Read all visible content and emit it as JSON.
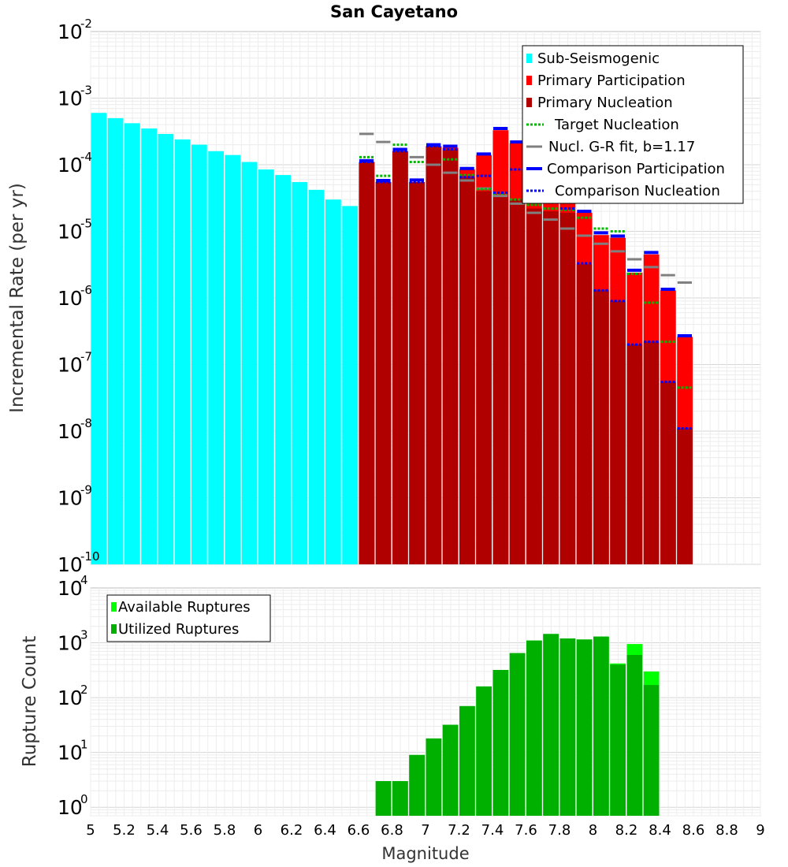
{
  "figure_title": "San Cayetano",
  "chart_data": [
    {
      "type": "bar",
      "title": "San Cayetano",
      "xlabel": "",
      "ylabel": "Incremental Rate (per yr)",
      "yscale": "log",
      "xlim": [
        5,
        9
      ],
      "ylim": [
        1e-10,
        0.01
      ],
      "x_bin_width": 0.1,
      "grid": true,
      "legend_position": "top-right",
      "legend": [
        {
          "label": "Sub-Seismogenic",
          "color": "#00FFFF",
          "style": "bar"
        },
        {
          "label": "Primary Participation",
          "color": "#FF0000",
          "style": "bar"
        },
        {
          "label": "Primary Nucleation",
          "color": "#B00000",
          "style": "bar"
        },
        {
          "label": "Target Nucleation",
          "color": "#00BB00",
          "style": "dotted"
        },
        {
          "label": "Nucl. G-R fit, b=1.17",
          "color": "#808080",
          "style": "dash"
        },
        {
          "label": "Comparison Participation",
          "color": "#0000FF",
          "style": "solid"
        },
        {
          "label": "Comparison Nucleation",
          "color": "#0000FF",
          "style": "dotted"
        }
      ],
      "series": [
        {
          "name": "Sub-Seismogenic",
          "color": "#00FFFF",
          "x": [
            5.05,
            5.15,
            5.25,
            5.35,
            5.45,
            5.55,
            5.65,
            5.75,
            5.85,
            5.95,
            6.05,
            6.15,
            6.25,
            6.35,
            6.45,
            6.55
          ],
          "values": [
            0.0006,
            0.0005,
            0.00042,
            0.00035,
            0.00029,
            0.00024,
            0.0002,
            0.00016,
            0.00014,
            0.00011,
            8.5e-05,
            7e-05,
            5.5e-05,
            4.2e-05,
            3e-05,
            2.4e-05
          ]
        },
        {
          "name": "Primary Participation",
          "color": "#FF0000",
          "x": [
            6.65,
            6.75,
            6.85,
            6.95,
            7.05,
            7.15,
            7.25,
            7.35,
            7.45,
            7.55,
            7.65,
            7.75,
            7.85,
            7.95,
            8.05,
            8.15,
            8.25,
            8.35,
            8.45,
            8.55
          ],
          "values": [
            0.00011,
            5.5e-05,
            0.00016,
            5.5e-05,
            0.00019,
            0.00018,
            8.5e-05,
            0.00014,
            0.00033,
            0.00021,
            0.00016,
            0.00012,
            9e-05,
            1.9e-05,
            8.8e-06,
            8e-06,
            2.4e-06,
            4.5e-06,
            1.3e-06,
            2.6e-07
          ]
        },
        {
          "name": "Primary Nucleation",
          "color": "#B00000",
          "x": [
            6.65,
            6.75,
            6.85,
            6.95,
            7.05,
            7.15,
            7.25,
            7.35,
            7.45,
            7.55,
            7.65,
            7.75,
            7.85,
            7.95,
            8.05,
            8.15,
            8.25,
            8.35,
            8.45,
            8.55
          ],
          "values": [
            0.00011,
            5.5e-05,
            0.00016,
            5.5e-05,
            0.00019,
            0.00017,
            6.5e-05,
            4e-05,
            3.5e-05,
            3e-05,
            2.2e-05,
            2e-05,
            1.9e-05,
            3.2e-06,
            1.3e-06,
            9e-07,
            2e-07,
            2.2e-07,
            5.5e-08,
            1.1e-08
          ]
        },
        {
          "name": "Target Nucleation",
          "color": "#00BB00",
          "x": [
            6.65,
            6.75,
            6.85,
            6.95,
            7.05,
            7.15,
            7.25,
            7.35,
            7.45,
            7.55,
            7.65,
            7.75,
            7.85,
            7.95,
            8.05,
            8.15,
            8.25,
            8.35,
            8.45,
            8.55
          ],
          "values": [
            0.00013,
            6.8e-05,
            0.0002,
            0.00011,
            0.00019,
            0.00012,
            7e-05,
            4.3e-05,
            3.7e-05,
            3e-05,
            2.5e-05,
            2.2e-05,
            2.1e-05,
            1.6e-05,
            1.1e-05,
            1e-05,
            2.3e-06,
            8.5e-07,
            2.2e-07,
            4.5e-08
          ]
        },
        {
          "name": "Nucl. G-R fit, b=1.17",
          "color": "#808080",
          "x": [
            6.65,
            6.75,
            6.85,
            6.95,
            7.05,
            7.15,
            7.25,
            7.35,
            7.45,
            7.55,
            7.65,
            7.75,
            7.85,
            7.95,
            8.05,
            8.15,
            8.25,
            8.35,
            8.45,
            8.55
          ],
          "values": [
            0.00029,
            0.00022,
            0.00017,
            0.00013,
            0.0001,
            7.6e-05,
            5.8e-05,
            4.4e-05,
            3.4e-05,
            2.6e-05,
            1.9e-05,
            1.5e-05,
            1.1e-05,
            8.6e-06,
            6.5e-06,
            5e-06,
            3.8e-06,
            2.9e-06,
            2.2e-06,
            1.7e-06
          ]
        },
        {
          "name": "Comparison Participation",
          "color": "#0000FF",
          "x": [
            6.65,
            6.75,
            6.85,
            6.95,
            7.05,
            7.15,
            7.25,
            7.35,
            7.45,
            7.55,
            7.65,
            7.75,
            7.85,
            7.95,
            8.05,
            8.15,
            8.25,
            8.35,
            8.45,
            8.55
          ],
          "values": [
            0.000115,
            5.8e-05,
            0.00017,
            5.9e-05,
            0.0002,
            0.00019,
            8.8e-05,
            0.000145,
            0.00035,
            0.00022,
            0.00017,
            0.00013,
            9.5e-05,
            2e-05,
            9.5e-06,
            8.5e-06,
            2.6e-06,
            4.8e-06,
            1.35e-06,
            2.7e-07
          ]
        },
        {
          "name": "Comparison Nucleation",
          "color": "#0000FF",
          "x": [
            6.65,
            6.75,
            6.85,
            6.95,
            7.05,
            7.15,
            7.25,
            7.35,
            7.45,
            7.55,
            7.65,
            7.75,
            7.85,
            7.95,
            8.05,
            8.15,
            8.25,
            8.35,
            8.45,
            8.55
          ],
          "values": [
            0.00011,
            5.5e-05,
            0.00016,
            5.5e-05,
            0.00019,
            0.00017,
            6.5e-05,
            6.8e-05,
            3.8e-05,
            8.5e-05,
            8.5e-05,
            8e-05,
            2.2e-05,
            3.3e-06,
            1.3e-06,
            9e-07,
            2e-07,
            2.2e-07,
            5.5e-08,
            1.1e-08
          ]
        }
      ]
    },
    {
      "type": "bar",
      "title": "",
      "xlabel": "Magnitude",
      "ylabel": "Rupture Count",
      "yscale": "log",
      "xlim": [
        5,
        9
      ],
      "ylim": [
        0.7,
        10000.0
      ],
      "x_bin_width": 0.1,
      "grid": true,
      "legend_position": "top-left",
      "legend": [
        {
          "label": "Available Ruptures",
          "color": "#00FF00",
          "style": "bar"
        },
        {
          "label": "Utilized Ruptures",
          "color": "#00B000",
          "style": "bar"
        }
      ],
      "x_ticks": [
        5,
        5.2,
        5.4,
        5.6,
        5.8,
        6,
        6.2,
        6.4,
        6.6,
        6.8,
        7,
        7.2,
        7.4,
        7.6,
        7.8,
        8,
        8.2,
        8.4,
        8.6,
        8.8,
        9
      ],
      "x_tick_labels": [
        "5",
        "5.2",
        "5.4",
        "5.6",
        "5.8",
        "6",
        "6.2",
        "6.4",
        "6.6",
        "6.8",
        "7",
        "7.2",
        "7.4",
        "7.6",
        "7.8",
        "8",
        "8.2",
        "8.4",
        "8.6",
        "8.8",
        "9"
      ],
      "series": [
        {
          "name": "Available Ruptures",
          "color": "#00FF00",
          "x": [
            6.75,
            6.85,
            6.95,
            7.05,
            7.15,
            7.25,
            7.35,
            7.45,
            7.55,
            7.65,
            7.75,
            7.85,
            7.95,
            8.05,
            8.15,
            8.25,
            8.35
          ],
          "values": [
            3,
            3,
            9,
            18,
            32,
            70,
            160,
            320,
            650,
            1100,
            1450,
            1200,
            1150,
            1300,
            420,
            950,
            300
          ]
        },
        {
          "name": "Utilized Ruptures",
          "color": "#00B000",
          "x": [
            6.75,
            6.85,
            6.95,
            7.05,
            7.15,
            7.25,
            7.35,
            7.45,
            7.55,
            7.65,
            7.75,
            7.85,
            7.95,
            8.05,
            8.15,
            8.25,
            8.35
          ],
          "values": [
            3,
            3,
            9,
            18,
            32,
            70,
            160,
            320,
            650,
            1100,
            1450,
            1200,
            1150,
            1300,
            400,
            600,
            170
          ]
        }
      ]
    }
  ]
}
